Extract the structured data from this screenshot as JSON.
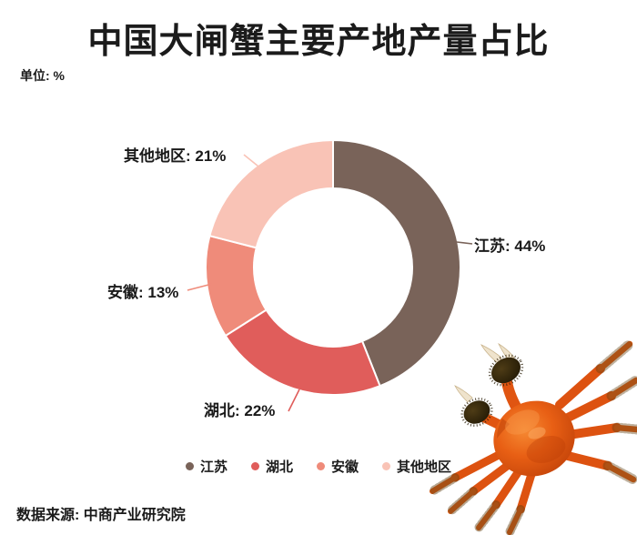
{
  "chart_data": {
    "type": "donut",
    "title": "中国大闸蟹主要产地产量占比",
    "unit_label": "单位: %",
    "source": "数据来源: 中商产业研究院",
    "categories": [
      "江苏",
      "湖北",
      "安徽",
      "其他地区"
    ],
    "values": [
      44,
      22,
      13,
      21
    ],
    "unit": "%",
    "colors": [
      "#796359",
      "#E05D5B",
      "#EF8B7A",
      "#F9C3B6"
    ],
    "slice_labels": [
      "江苏: 44%",
      "湖北: 22%",
      "安徽: 13%",
      "其他地区: 21%"
    ],
    "start_angle": "top",
    "direction": "clockwise",
    "legend_position": "bottom",
    "background": "#ffffff",
    "text_color": "#1b1b1b"
  }
}
